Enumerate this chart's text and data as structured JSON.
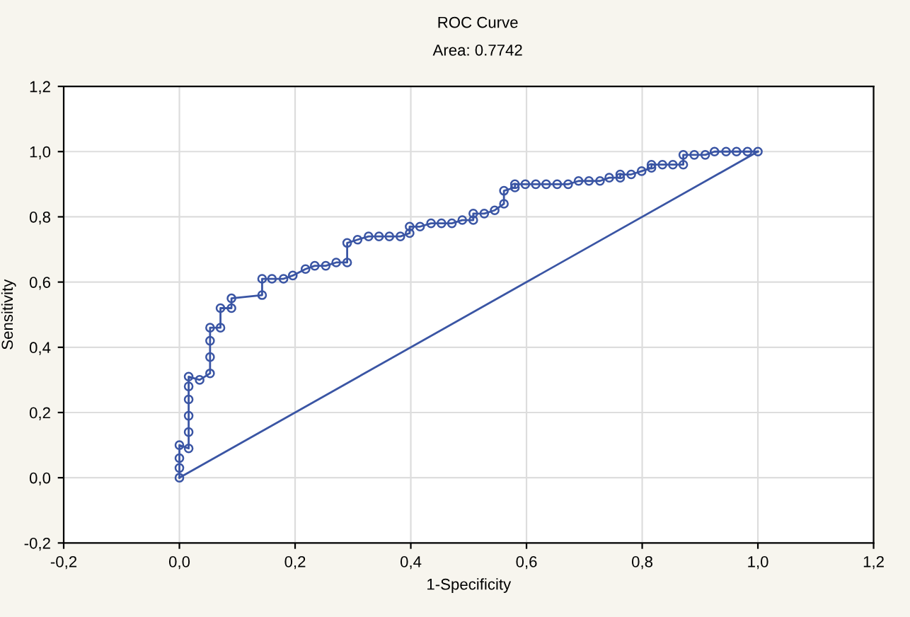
{
  "chart_data": {
    "type": "line",
    "title": "ROC Curve",
    "subtitle": "Area: 0.7742",
    "xlabel": "1-Specificity",
    "ylabel": "Sensitivity",
    "series": [
      {
        "color": "#3a55a4",
        "marker": "circle",
        "x": [
          0,
          0,
          0,
          0,
          0.016,
          0.016,
          0.016,
          0.016,
          0.016,
          0.016,
          0.035,
          0.053,
          0.053,
          0.053,
          0.053,
          0.071,
          0.071,
          0.09,
          0.09,
          0.143,
          0.143,
          0.16,
          0.18,
          0.196,
          0.218,
          0.234,
          0.253,
          0.271,
          0.29,
          0.29,
          0.308,
          0.327,
          0.345,
          0.363,
          0.382,
          0.398,
          0.398,
          0.416,
          0.435,
          0.453,
          0.471,
          0.489,
          0.508,
          0.508,
          0.527,
          0.545,
          0.561,
          0.561,
          0.58,
          0.58,
          0.598,
          0.616,
          0.634,
          0.653,
          0.672,
          0.69,
          0.708,
          0.727,
          0.743,
          0.762,
          0.762,
          0.781,
          0.799,
          0.816,
          0.816,
          0.835,
          0.853,
          0.871,
          0.871,
          0.89,
          0.909,
          0.925,
          0.945,
          0.963,
          0.982,
          1.0
        ],
        "values": [
          0,
          0.03,
          0.06,
          0.1,
          0.09,
          0.14,
          0.19,
          0.24,
          0.28,
          0.31,
          0.3,
          0.32,
          0.37,
          0.42,
          0.46,
          0.46,
          0.52,
          0.52,
          0.55,
          0.56,
          0.61,
          0.61,
          0.61,
          0.62,
          0.64,
          0.65,
          0.65,
          0.66,
          0.66,
          0.72,
          0.73,
          0.74,
          0.74,
          0.74,
          0.74,
          0.75,
          0.77,
          0.77,
          0.78,
          0.78,
          0.78,
          0.79,
          0.79,
          0.81,
          0.81,
          0.82,
          0.84,
          0.88,
          0.89,
          0.9,
          0.9,
          0.9,
          0.9,
          0.9,
          0.9,
          0.91,
          0.91,
          0.91,
          0.92,
          0.92,
          0.93,
          0.93,
          0.94,
          0.95,
          0.96,
          0.96,
          0.96,
          0.96,
          0.99,
          0.99,
          0.99,
          1.0,
          1.0,
          1.0,
          1.0,
          1.0
        ]
      },
      {
        "color": "#3a55a4",
        "marker": "none",
        "x": [
          0,
          1
        ],
        "values": [
          0,
          1
        ]
      }
    ],
    "xlim": [
      -0.2,
      1.2
    ],
    "xticks": [
      {
        "value": -0.2,
        "label": "-0,2"
      },
      {
        "value": 0,
        "label": "0,0"
      },
      {
        "value": 0.2,
        "label": "0,2"
      },
      {
        "value": 0.4,
        "label": "0,4"
      },
      {
        "value": 0.6,
        "label": "0,6"
      },
      {
        "value": 0.8,
        "label": "0,8"
      },
      {
        "value": 1.0,
        "label": "1,0"
      },
      {
        "value": 1.2,
        "label": "1,2"
      }
    ],
    "ylim": [
      -0.2,
      1.2
    ],
    "yticks": [
      {
        "value": -0.2,
        "label": "-0,2"
      },
      {
        "value": 0,
        "label": "0,0"
      },
      {
        "value": 0.2,
        "label": "0,2"
      },
      {
        "value": 0.4,
        "label": "0,4"
      },
      {
        "value": 0.6,
        "label": "0,6"
      },
      {
        "value": 0.8,
        "label": "0,8"
      },
      {
        "value": 1.0,
        "label": "1,0"
      },
      {
        "value": 1.2,
        "label": "1,2"
      }
    ],
    "grid": true
  }
}
